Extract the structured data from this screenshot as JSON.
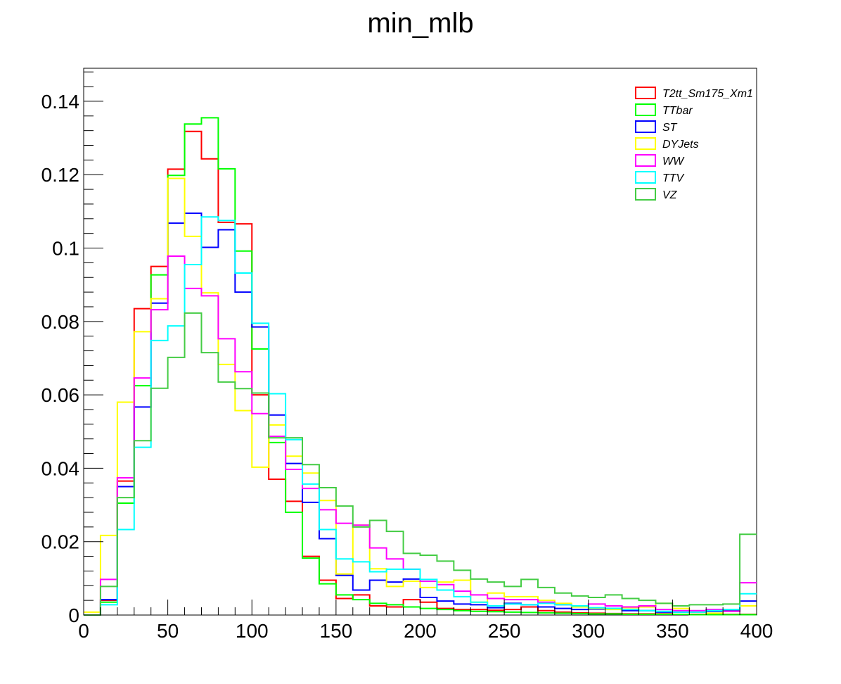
{
  "chart_data": {
    "type": "histogram-step",
    "title": "min_mlb",
    "xlabel": "",
    "ylabel": "",
    "xlim": [
      0,
      400
    ],
    "ylim": [
      0,
      0.149
    ],
    "bin_width": 10,
    "x_ticks": [
      0,
      50,
      100,
      150,
      200,
      250,
      300,
      350,
      400
    ],
    "x_tick_labels": [
      "0",
      "50",
      "100",
      "150",
      "200",
      "250",
      "300",
      "350",
      "400"
    ],
    "y_ticks": [
      0,
      0.02,
      0.04,
      0.06,
      0.08,
      0.1,
      0.12,
      0.14
    ],
    "y_tick_labels": [
      "0",
      "0.02",
      "0.04",
      "0.06",
      "0.08",
      "0.1",
      "0.12",
      "0.14"
    ],
    "grid": false,
    "legend_position": "top-right",
    "series": [
      {
        "name": "T2tt_Sm175_Xm1",
        "color": "#ff0000",
        "values": [
          0.0,
          0.004,
          0.0365,
          0.0835,
          0.095,
          0.1215,
          0.1318,
          0.1243,
          0.107,
          0.1066,
          0.06,
          0.037,
          0.031,
          0.016,
          0.0095,
          0.0045,
          0.0055,
          0.0025,
          0.0022,
          0.0042,
          0.0035,
          0.0018,
          0.0015,
          0.0015,
          0.0013,
          0.0015,
          0.0022,
          0.0012,
          0.0008,
          0.0006,
          0.0005,
          0.0004,
          0.0003,
          0.0003,
          0.0003,
          0.0002,
          0.0002,
          0.0002,
          0.0002,
          0.0002
        ]
      },
      {
        "name": "TTbar",
        "color": "#00ff00",
        "values": [
          0.0,
          0.0035,
          0.0305,
          0.0625,
          0.0927,
          0.1198,
          0.1338,
          0.1355,
          0.1216,
          0.0992,
          0.0725,
          0.047,
          0.028,
          0.0155,
          0.0085,
          0.0055,
          0.0042,
          0.0032,
          0.0028,
          0.0022,
          0.0018,
          0.0015,
          0.0012,
          0.001,
          0.0009,
          0.0008,
          0.0007,
          0.0006,
          0.0005,
          0.0004,
          0.0003,
          0.0003,
          0.0002,
          0.0002,
          0.0002,
          0.0002,
          0.0001,
          0.0001,
          0.0001,
          0.0001
        ]
      },
      {
        "name": "ST",
        "color": "#0000ff",
        "values": [
          0.0,
          0.0042,
          0.035,
          0.0567,
          0.085,
          0.1068,
          0.1095,
          0.1002,
          0.105,
          0.088,
          0.0785,
          0.0545,
          0.0413,
          0.0307,
          0.0208,
          0.0108,
          0.0068,
          0.0095,
          0.009,
          0.0098,
          0.0048,
          0.0038,
          0.003,
          0.0028,
          0.002,
          0.0032,
          0.0028,
          0.0022,
          0.0018,
          0.0015,
          0.0016,
          0.0018,
          0.0012,
          0.0012,
          0.0008,
          0.0008,
          0.0008,
          0.001,
          0.0012,
          0.0038
        ]
      },
      {
        "name": "DYJets",
        "color": "#ffff00",
        "values": [
          0.0008,
          0.0217,
          0.058,
          0.0772,
          0.0862,
          0.119,
          0.1032,
          0.0878,
          0.0683,
          0.0557,
          0.0403,
          0.0518,
          0.0433,
          0.0387,
          0.0312,
          0.0112,
          0.0245,
          0.0126,
          0.0078,
          0.0092,
          0.0075,
          0.009,
          0.0095,
          0.0035,
          0.006,
          0.005,
          0.005,
          0.004,
          0.0032,
          0.0022,
          0.0018,
          0.0015,
          0.002,
          0.0022,
          0.0032,
          0.0018,
          0.0008,
          0.0005,
          0.001,
          0.0025
        ]
      },
      {
        "name": "WW",
        "color": "#ff00ff",
        "values": [
          0.0,
          0.0097,
          0.0374,
          0.0646,
          0.0832,
          0.0978,
          0.089,
          0.087,
          0.0753,
          0.0663,
          0.0549,
          0.0487,
          0.0397,
          0.0345,
          0.0287,
          0.025,
          0.0245,
          0.0183,
          0.0153,
          0.0125,
          0.0092,
          0.0083,
          0.0065,
          0.0055,
          0.0045,
          0.0042,
          0.0042,
          0.0035,
          0.0028,
          0.0025,
          0.003,
          0.0025,
          0.0022,
          0.0025,
          0.0015,
          0.0012,
          0.0012,
          0.0015,
          0.001,
          0.0088
        ]
      },
      {
        "name": "TTV",
        "color": "#00ffff",
        "values": [
          0.0,
          0.0028,
          0.0233,
          0.0457,
          0.0748,
          0.0788,
          0.0955,
          0.1085,
          0.1075,
          0.0932,
          0.0795,
          0.0603,
          0.0478,
          0.0357,
          0.0233,
          0.0153,
          0.0145,
          0.0118,
          0.0125,
          0.0125,
          0.0097,
          0.0068,
          0.005,
          0.0035,
          0.0025,
          0.003,
          0.0028,
          0.0032,
          0.0028,
          0.0025,
          0.002,
          0.0018,
          0.0015,
          0.0012,
          0.001,
          0.0008,
          0.0008,
          0.0012,
          0.0015,
          0.0058
        ]
      },
      {
        "name": "VZ",
        "color": "#44cc44",
        "values": [
          0.0,
          0.0078,
          0.032,
          0.0475,
          0.0618,
          0.0702,
          0.0823,
          0.0715,
          0.0635,
          0.0617,
          0.0605,
          0.0483,
          0.0483,
          0.041,
          0.0347,
          0.0297,
          0.024,
          0.0258,
          0.0228,
          0.0168,
          0.0163,
          0.0147,
          0.0122,
          0.0098,
          0.009,
          0.0078,
          0.0097,
          0.0075,
          0.006,
          0.0052,
          0.0048,
          0.0055,
          0.0045,
          0.004,
          0.0032,
          0.0025,
          0.0028,
          0.0028,
          0.003,
          0.022
        ]
      }
    ]
  }
}
